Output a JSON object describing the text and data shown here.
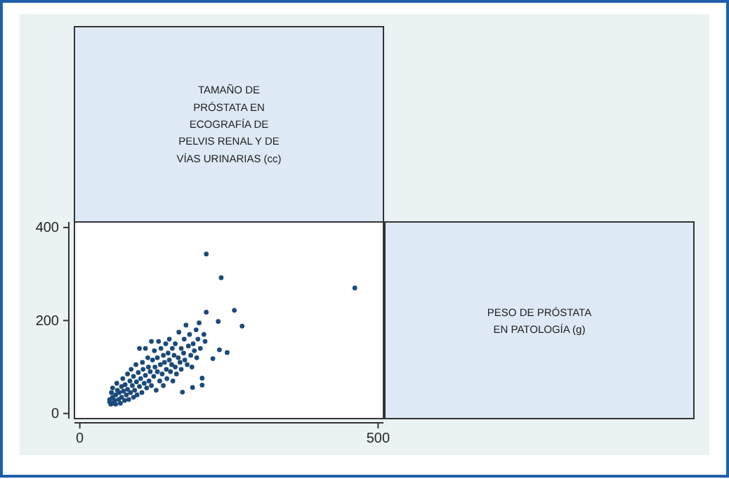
{
  "chart_data": {
    "type": "scatter",
    "annotations": [
      "TAMAÑO DE PRÓSTATA EN ECOGRAFÍA DE PELVIS RENAL Y DE VÍAS URINARIAS (cc)",
      "PESO DE PRÓSTATA EN PATOLOGÍA (g)"
    ],
    "xlim": [
      -9,
      509
    ],
    "ylim": [
      -11,
      412
    ],
    "xticks": [
      0,
      500
    ],
    "yticks": [
      0,
      200,
      400
    ],
    "marker": "circle",
    "grid": false,
    "series": [
      {
        "color": "#1b4a7a",
        "x": [
          50,
          52,
          50,
          53,
          54,
          55,
          55,
          58,
          60,
          60,
          62,
          63,
          65,
          66,
          68,
          70,
          70,
          72,
          73,
          75,
          76,
          78,
          80,
          80,
          82,
          84,
          85,
          86,
          88,
          90,
          90,
          92,
          94,
          95,
          96,
          98,
          100,
          100,
          102,
          104,
          105,
          106,
          108,
          110,
          110,
          112,
          114,
          115,
          116,
          118,
          120,
          120,
          122,
          124,
          125,
          126,
          128,
          130,
          130,
          132,
          134,
          135,
          136,
          138,
          140,
          140,
          142,
          144,
          145,
          146,
          148,
          150,
          150,
          152,
          154,
          155,
          156,
          158,
          160,
          160,
          162,
          165,
          166,
          168,
          170,
          170,
          172,
          174,
          175,
          176,
          178,
          180,
          182,
          184,
          186,
          188,
          189,
          190,
          192,
          195,
          196,
          198,
          200,
          202,
          205,
          205,
          208,
          210,
          212,
          212,
          223,
          232,
          234,
          237,
          247,
          259,
          272,
          461
        ],
        "values": [
          25,
          20,
          30,
          45,
          22,
          35,
          55,
          28,
          40,
          20,
          65,
          50,
          30,
          45,
          22,
          58,
          35,
          75,
          48,
          28,
          62,
          40,
          85,
          52,
          30,
          70,
          45,
          95,
          60,
          35,
          80,
          50,
          105,
          68,
          40,
          88,
          58,
          140,
          75,
          45,
          110,
          95,
          65,
          140,
          82,
          55,
          120,
          100,
          70,
          90,
          155,
          60,
          115,
          80,
          135,
          100,
          50,
          120,
          90,
          155,
          70,
          105,
          140,
          85,
          125,
          60,
          110,
          150,
          95,
          75,
          130,
          115,
          160,
          90,
          105,
          140,
          70,
          125,
          100,
          150,
          85,
          120,
          175,
          110,
          140,
          95,
          46,
          130,
          160,
          115,
          190,
          105,
          145,
          170,
          125,
          100,
          56,
          150,
          135,
          180,
          120,
          160,
          195,
          140,
          76,
          61,
          170,
          155,
          218,
          343,
          118,
          198,
          137,
          292,
          131,
          222,
          188,
          270
        ]
      }
    ]
  }
}
